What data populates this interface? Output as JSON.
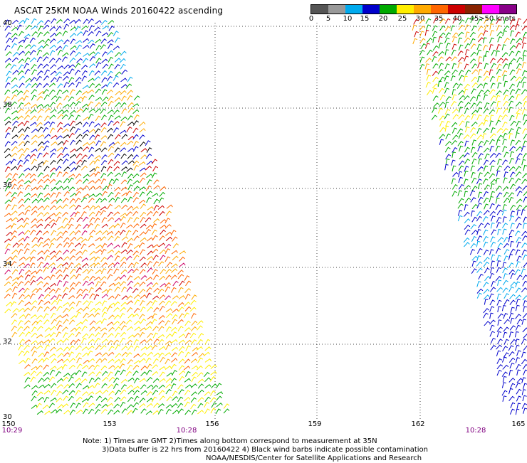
{
  "title": "ASCAT 25KM NOAA Winds 20160422 ascending",
  "legend": {
    "unit": "knots",
    "ticks": [
      "0",
      "5",
      "10",
      "15",
      "20",
      "25",
      "30",
      "35",
      "40",
      "45",
      ">50"
    ],
    "colors": [
      "#555555",
      "#999999",
      "#00aaee",
      "#0000cc",
      "#00aa00",
      "#ffee00",
      "#ffaa00",
      "#ff6600",
      "#cc0000",
      "#882200",
      "#ff00ff",
      "#880088"
    ]
  },
  "map": {
    "lat_labels": [
      "40",
      "38",
      "36",
      "34",
      "32",
      "30"
    ],
    "lon_labels": [
      "150",
      "153",
      "156",
      "159",
      "162",
      "165"
    ],
    "times": [
      "10:29",
      "10:28",
      "10:28"
    ]
  },
  "notes": {
    "line1": "Note: 1) Times are GMT 2)Times along bottom correspond to measurement at 35N",
    "line2": "3)Data buffer is 22 hrs from 20160422 4) Black wind barbs indicate possible contamination",
    "line3": "NOAA/NESDIS/Center for Satellite Applications and Research"
  }
}
